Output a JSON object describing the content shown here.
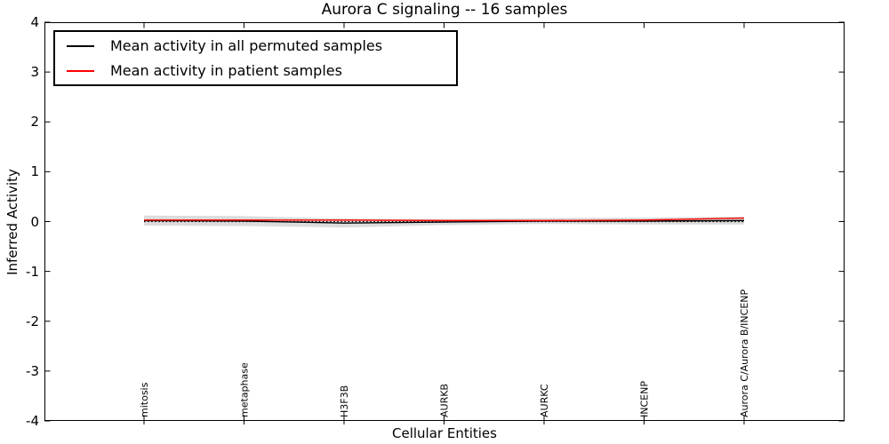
{
  "chart_data": {
    "type": "line",
    "title": "Aurora C signaling -- 16 samples",
    "xlabel": "Cellular Entities",
    "ylabel": "Inferred Activity",
    "ylim": [
      -4,
      4
    ],
    "yticks": [
      4,
      3,
      2,
      1,
      0,
      -1,
      -2,
      -3,
      -4
    ],
    "categories": [
      "mitosis",
      "metaphase",
      "H3F3B",
      "AURKB",
      "AURKC",
      "INCENP",
      "Aurora C/Aurora B/INCENP"
    ],
    "series": [
      {
        "name": "Mean activity in all permuted samples",
        "color": "#000000",
        "style": "solid",
        "values": [
          0.02,
          0.01,
          -0.03,
          -0.01,
          0.01,
          0.01,
          0.02
        ]
      },
      {
        "name": "Mean activity in patient samples",
        "color": "#ff0000",
        "style": "solid",
        "values": [
          0.03,
          0.03,
          0.03,
          0.02,
          0.02,
          0.03,
          0.07
        ]
      }
    ],
    "band": {
      "around_series": "Mean activity in all permuted samples",
      "color": "#dcdcdc",
      "std": [
        0.1,
        0.1,
        0.09,
        0.06,
        0.06,
        0.07,
        0.08
      ]
    },
    "zero_line": {
      "value": 0,
      "style": "dotted",
      "color": "#000000"
    },
    "grid": false,
    "legend_position": "upper left"
  }
}
